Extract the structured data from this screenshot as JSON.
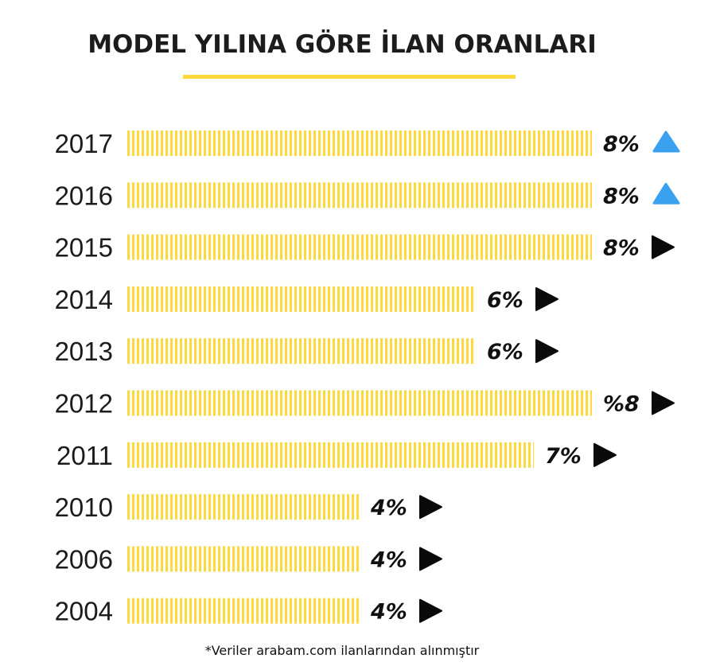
{
  "colors": {
    "bar": "#ffd93b",
    "up": "#3aa0f0",
    "flat": "#0a0a0a",
    "text": "#1c1c1c"
  },
  "chart_data": {
    "type": "bar",
    "orientation": "horizontal",
    "title": "MODEL YILINA GÖRE İLAN ORANLARI",
    "footnote": "*Veriler arabam.com ilanlarından alınmıştır",
    "unit": "%",
    "categories": [
      "2017",
      "2016",
      "2015",
      "2014",
      "2013",
      "2012",
      "2011",
      "2010",
      "2006",
      "2004"
    ],
    "values": [
      8,
      8,
      8,
      6,
      6,
      8,
      7,
      4,
      4,
      4
    ],
    "value_labels": [
      "8%",
      "8%",
      "8%",
      "6%",
      "6%",
      "%8",
      "7%",
      "4%",
      "4%",
      "4%"
    ],
    "trend_icons": [
      "triangle-up-icon",
      "triangle-up-icon",
      "play-icon",
      "play-icon",
      "play-icon",
      "play-icon",
      "play-icon",
      "play-icon",
      "play-icon",
      "play-icon"
    ],
    "xlim": [
      0,
      8
    ]
  }
}
